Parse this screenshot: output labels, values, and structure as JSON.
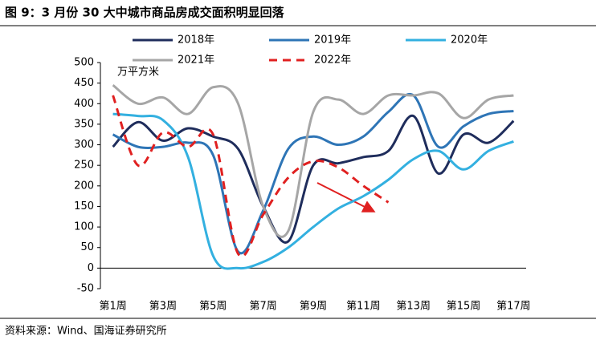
{
  "chart_data": {
    "type": "line",
    "title": "图 9：3 月份 30 大中城市商品房成交面积明显回落",
    "y_unit": "万平方米",
    "source": "资料来源：Wind、国海证券研究所",
    "categories": [
      "第1周",
      null,
      "第3周",
      null,
      "第5周",
      null,
      "第7周",
      null,
      "第9周",
      null,
      "第11周",
      null,
      "第13周",
      null,
      "第15周",
      null,
      "第17周"
    ],
    "series": [
      {
        "name": "2018年",
        "color": "#1f2d5c",
        "dash": false,
        "values": [
          295,
          355,
          310,
          340,
          320,
          290,
          150,
          65,
          250,
          255,
          270,
          285,
          370,
          230,
          325,
          305,
          358
        ]
      },
      {
        "name": "2019年",
        "color": "#2e75b6",
        "dash": false,
        "values": [
          325,
          295,
          295,
          305,
          275,
          40,
          140,
          290,
          320,
          300,
          320,
          380,
          420,
          295,
          345,
          375,
          382
        ]
      },
      {
        "name": "2020年",
        "color": "#33b0e0",
        "dash": false,
        "values": [
          375,
          370,
          360,
          270,
          30,
          0,
          15,
          50,
          100,
          145,
          175,
          215,
          265,
          285,
          240,
          285,
          308
        ]
      },
      {
        "name": "2021年",
        "color": "#a6a6a6",
        "dash": false,
        "values": [
          445,
          400,
          415,
          375,
          440,
          400,
          150,
          90,
          380,
          410,
          375,
          420,
          420,
          425,
          365,
          410,
          420
        ]
      },
      {
        "name": "2022年",
        "color": "#e02020",
        "dash": true,
        "values": [
          420,
          250,
          330,
          295,
          325,
          35,
          130,
          220,
          260,
          245,
          200,
          160,
          null,
          null,
          null,
          null,
          null
        ]
      }
    ],
    "ylim": [
      -50,
      500
    ],
    "yticks": [
      -50,
      0,
      50,
      100,
      150,
      200,
      250,
      300,
      350,
      400,
      450,
      500
    ]
  }
}
